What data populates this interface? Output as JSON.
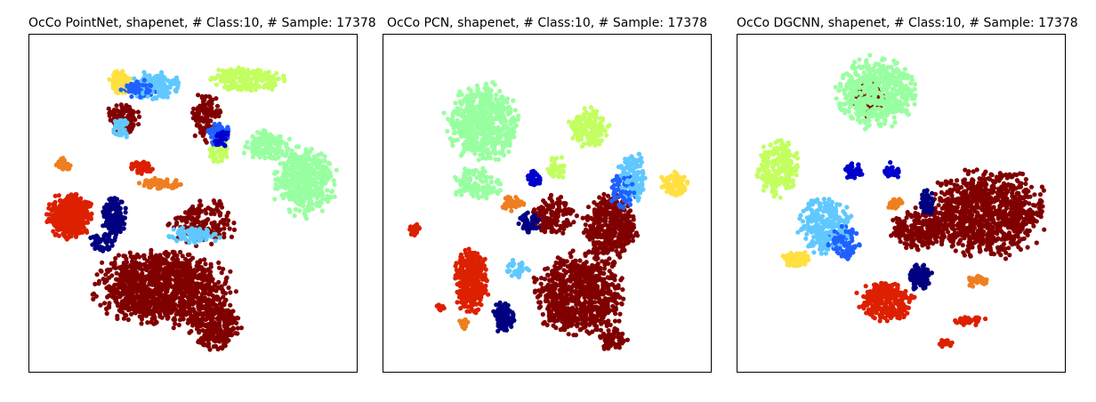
{
  "chart_data": [
    {
      "type": "scatter",
      "title": "OcCo PointNet, shapenet, # Class:10, # Sample: 17378",
      "xlabel": "",
      "ylabel": "",
      "xlim": [
        0,
        100
      ],
      "ylim": [
        0,
        100
      ],
      "grid": false,
      "ticks": false,
      "legend": "none",
      "point_radius": 2.6,
      "series": [
        {
          "color": "#800000",
          "clusters": [
            {
              "x": 40,
              "y": 24,
              "rx": 24,
              "ry": 13,
              "n": 1100
            },
            {
              "x": 57,
              "y": 13,
              "rx": 9,
              "ry": 9,
              "n": 300
            },
            {
              "x": 53,
              "y": 44,
              "rx": 12,
              "ry": 8,
              "n": 160
            },
            {
              "x": 28,
              "y": 76,
              "rx": 6,
              "ry": 6,
              "n": 110
            },
            {
              "x": 54,
              "y": 77,
              "rx": 5,
              "ry": 10,
              "n": 110
            }
          ]
        },
        {
          "color": "#dd2000",
          "clusters": [
            {
              "x": 11,
              "y": 46,
              "rx": 8,
              "ry": 8,
              "n": 380
            },
            {
              "x": 34,
              "y": 61,
              "rx": 4,
              "ry": 2,
              "n": 60
            }
          ]
        },
        {
          "color": "#98ffa0",
          "clusters": [
            {
              "x": 85,
              "y": 57,
              "rx": 11,
              "ry": 12,
              "n": 420
            },
            {
              "x": 73,
              "y": 68,
              "rx": 8,
              "ry": 6,
              "n": 120
            }
          ]
        },
        {
          "color": "#c2ff5f",
          "clusters": [
            {
              "x": 67,
              "y": 88,
              "rx": 14,
              "ry": 4,
              "n": 190
            },
            {
              "x": 58,
              "y": 66,
              "rx": 4,
              "ry": 4,
              "n": 45
            }
          ]
        },
        {
          "color": "#ffe040",
          "clusters": [
            {
              "x": 27,
              "y": 87,
              "rx": 4,
              "ry": 4,
              "n": 80
            }
          ]
        },
        {
          "color": "#60c8ff",
          "clusters": [
            {
              "x": 38,
              "y": 86,
              "rx": 9,
              "ry": 5,
              "n": 150
            },
            {
              "x": 50,
              "y": 40,
              "rx": 10,
              "ry": 3,
              "n": 80
            },
            {
              "x": 27,
              "y": 73,
              "rx": 3,
              "ry": 4,
              "n": 35
            }
          ]
        },
        {
          "color": "#2060ff",
          "clusters": [
            {
              "x": 33,
              "y": 85,
              "rx": 6,
              "ry": 3,
              "n": 70
            },
            {
              "x": 58,
              "y": 71,
              "rx": 4,
              "ry": 4,
              "n": 45
            }
          ]
        },
        {
          "color": "#0000cd",
          "clusters": [
            {
              "x": 59,
              "y": 70,
              "rx": 3,
              "ry": 3,
              "n": 40
            }
          ]
        },
        {
          "color": "#000080",
          "clusters": [
            {
              "x": 25,
              "y": 46,
              "rx": 4,
              "ry": 8,
              "n": 140
            },
            {
              "x": 22,
              "y": 38,
              "rx": 5,
              "ry": 4,
              "n": 50
            }
          ]
        },
        {
          "color": "#ee7f20",
          "clusters": [
            {
              "x": 40,
              "y": 56,
              "rx": 8,
              "ry": 2,
              "n": 70
            },
            {
              "x": 9,
              "y": 62,
              "rx": 3,
              "ry": 2,
              "n": 25
            }
          ]
        }
      ]
    },
    {
      "type": "scatter",
      "title": "OcCo PCN, shapenet, # Class:10, # Sample: 17378",
      "xlabel": "",
      "ylabel": "",
      "xlim": [
        0,
        100
      ],
      "ylim": [
        0,
        100
      ],
      "grid": false,
      "ticks": false,
      "legend": "none",
      "point_radius": 2.6,
      "series": [
        {
          "color": "#800000",
          "clusters": [
            {
              "x": 60,
              "y": 22,
              "rx": 16,
              "ry": 14,
              "n": 750
            },
            {
              "x": 70,
              "y": 42,
              "rx": 10,
              "ry": 12,
              "n": 380
            },
            {
              "x": 52,
              "y": 46,
              "rx": 8,
              "ry": 7,
              "n": 160
            },
            {
              "x": 71,
              "y": 8,
              "rx": 5,
              "ry": 4,
              "n": 60
            }
          ]
        },
        {
          "color": "#dd2000",
          "clusters": [
            {
              "x": 26,
              "y": 26,
              "rx": 6,
              "ry": 11,
              "n": 320
            },
            {
              "x": 8,
              "y": 42,
              "rx": 2,
              "ry": 2,
              "n": 25
            },
            {
              "x": 16,
              "y": 18,
              "rx": 2,
              "ry": 1.5,
              "n": 12
            }
          ]
        },
        {
          "color": "#98ffa0",
          "clusters": [
            {
              "x": 30,
              "y": 75,
              "rx": 13,
              "ry": 13,
              "n": 560
            },
            {
              "x": 28,
              "y": 56,
              "rx": 9,
              "ry": 6,
              "n": 120
            }
          ]
        },
        {
          "color": "#c2ff5f",
          "clusters": [
            {
              "x": 63,
              "y": 73,
              "rx": 7,
              "ry": 7,
              "n": 150
            },
            {
              "x": 53,
              "y": 61,
              "rx": 3,
              "ry": 5,
              "n": 40
            }
          ]
        },
        {
          "color": "#ffe040",
          "clusters": [
            {
              "x": 90,
              "y": 56,
              "rx": 5,
              "ry": 4,
              "n": 90
            }
          ]
        },
        {
          "color": "#60c8ff",
          "clusters": [
            {
              "x": 77,
              "y": 58,
              "rx": 5,
              "ry": 9,
              "n": 130
            },
            {
              "x": 40,
              "y": 30,
              "rx": 5,
              "ry": 3,
              "n": 35
            }
          ]
        },
        {
          "color": "#2060ff",
          "clusters": [
            {
              "x": 74,
              "y": 54,
              "rx": 5,
              "ry": 6,
              "n": 60
            }
          ]
        },
        {
          "color": "#0000cd",
          "clusters": [
            {
              "x": 46,
              "y": 58,
              "rx": 3,
              "ry": 3,
              "n": 40
            }
          ]
        },
        {
          "color": "#000080",
          "clusters": [
            {
              "x": 36,
              "y": 15,
              "rx": 4,
              "ry": 5,
              "n": 100
            },
            {
              "x": 44,
              "y": 44,
              "rx": 4,
              "ry": 4,
              "n": 45
            }
          ]
        },
        {
          "color": "#ee7f20",
          "clusters": [
            {
              "x": 39,
              "y": 50,
              "rx": 4,
              "ry": 3,
              "n": 40
            },
            {
              "x": 24,
              "y": 13,
              "rx": 2,
              "ry": 2,
              "n": 15
            }
          ]
        }
      ]
    },
    {
      "type": "scatter",
      "title": "OcCo DGCNN, shapenet, # Class:10, # Sample: 17378",
      "xlabel": "",
      "ylabel": "",
      "xlim": [
        0,
        100
      ],
      "ylim": [
        0,
        100
      ],
      "grid": false,
      "ticks": false,
      "legend": "none",
      "point_radius": 2.6,
      "series": [
        {
          "color": "#800000",
          "clusters": [
            {
              "x": 77,
              "y": 47,
              "rx": 21,
              "ry": 15,
              "n": 950
            },
            {
              "x": 55,
              "y": 42,
              "rx": 10,
              "ry": 7,
              "n": 220
            },
            {
              "x": 40,
              "y": 82,
              "rx": 6,
              "ry": 6,
              "n": 80
            }
          ]
        },
        {
          "color": "#dd2000",
          "clusters": [
            {
              "x": 45,
              "y": 20,
              "rx": 10,
              "ry": 7,
              "n": 300
            },
            {
              "x": 72,
              "y": 14,
              "rx": 6,
              "ry": 1.5,
              "n": 40
            },
            {
              "x": 64,
              "y": 7,
              "rx": 2.5,
              "ry": 1.5,
              "n": 20
            }
          ]
        },
        {
          "color": "#98ffa0",
          "clusters": [
            {
              "x": 42,
              "y": 84,
              "rx": 14,
              "ry": 12,
              "n": 540
            }
          ]
        },
        {
          "color": "#c2ff5f",
          "clusters": [
            {
              "x": 11,
              "y": 61,
              "rx": 8,
              "ry": 10,
              "n": 200
            }
          ]
        },
        {
          "color": "#ffe040",
          "clusters": [
            {
              "x": 17,
              "y": 33,
              "rx": 5,
              "ry": 3,
              "n": 90
            }
          ]
        },
        {
          "color": "#60c8ff",
          "clusters": [
            {
              "x": 26,
              "y": 43,
              "rx": 9,
              "ry": 10,
              "n": 280
            }
          ]
        },
        {
          "color": "#2060ff",
          "clusters": [
            {
              "x": 32,
              "y": 38,
              "rx": 6,
              "ry": 6,
              "n": 80
            }
          ]
        },
        {
          "color": "#0000cd",
          "clusters": [
            {
              "x": 35,
              "y": 60,
              "rx": 3,
              "ry": 3,
              "n": 40
            },
            {
              "x": 47,
              "y": 60,
              "rx": 3,
              "ry": 3,
              "n": 30
            }
          ]
        },
        {
          "color": "#000080",
          "clusters": [
            {
              "x": 56,
              "y": 27,
              "rx": 4,
              "ry": 5,
              "n": 100
            },
            {
              "x": 58,
              "y": 50,
              "rx": 3,
              "ry": 5,
              "n": 50
            }
          ]
        },
        {
          "color": "#ee7f20",
          "clusters": [
            {
              "x": 74,
              "y": 26,
              "rx": 4,
              "ry": 2,
              "n": 30
            },
            {
              "x": 48,
              "y": 50,
              "rx": 3,
              "ry": 2,
              "n": 25
            }
          ]
        }
      ]
    }
  ]
}
